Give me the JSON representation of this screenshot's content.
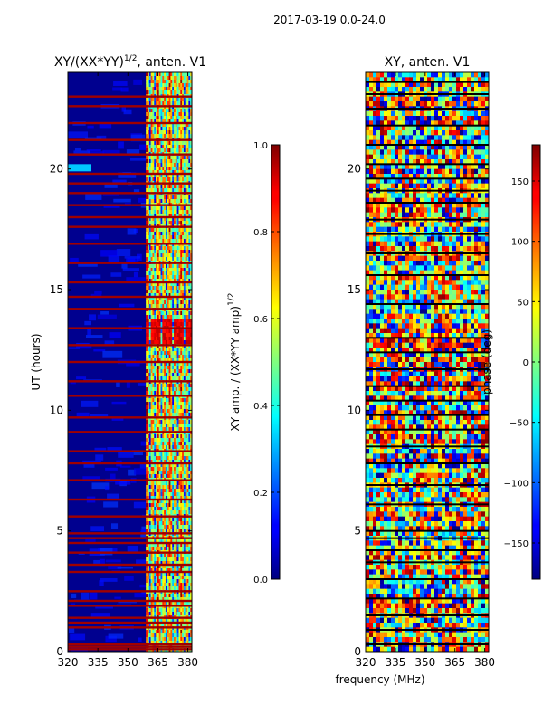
{
  "suptitle": "2017-03-19 0.0-24.0",
  "shared_xlabel": "frequency (MHz)",
  "colors": {
    "jet_dark_blue": "#00007f",
    "jet_blue": "#0000ff",
    "jet_cyan": "#00ffff",
    "jet_yellow": "#ffff00",
    "jet_red": "#ff0000",
    "jet_dark_red": "#7f0000",
    "frame": "#000000"
  },
  "chart_data": [
    {
      "type": "heatmap",
      "title": "XY/(XX*YY)",
      "title_exponent": "1/2",
      "title_suffix": ", anten. V1",
      "xlabel": "",
      "ylabel": "UT (hours)",
      "xlim": [
        320,
        382
      ],
      "ylim": [
        0,
        24
      ],
      "xticks": [
        320,
        335,
        350,
        365,
        380
      ],
      "yticks": [
        0,
        5,
        10,
        15,
        20
      ],
      "colorbar": {
        "label": "XY amp. / (XX*YY amp)",
        "label_exponent": "1/2",
        "range": [
          0.0,
          1.0
        ],
        "ticks": [
          "0.0",
          "0.2",
          "0.4",
          "0.6",
          "0.8",
          "1.0"
        ],
        "tick_values": [
          0.0,
          0.2,
          0.4,
          0.6,
          0.8,
          1.0
        ]
      },
      "active_band_mhz": [
        359,
        382
      ],
      "flagged_band_hours": [
        0.1,
        0.2,
        0.3,
        1.0,
        1.2,
        1.4,
        1.9,
        2.1,
        2.5,
        3.3,
        3.6,
        4.1,
        4.5,
        4.7,
        4.9,
        5.6,
        6.3,
        7.1,
        7.8,
        8.3,
        9.1,
        9.7,
        10.6,
        11.2,
        12.0,
        12.7,
        13.4,
        14.2,
        14.7,
        15.3,
        16.1,
        16.9,
        17.6,
        18.0,
        18.5,
        19.0,
        19.4,
        19.8,
        20.6,
        21.2,
        21.9,
        22.6,
        23.0
      ],
      "high_amp_block_hours": [
        12.8,
        13.8
      ]
    },
    {
      "type": "heatmap",
      "title": "XY, anten. V1",
      "xlabel": "frequency (MHz)",
      "ylabel": "",
      "xlim": [
        320,
        382
      ],
      "ylim": [
        0,
        24
      ],
      "xticks": [
        320,
        335,
        350,
        365,
        380
      ],
      "yticks": [
        0,
        5,
        10,
        15,
        20
      ],
      "colorbar": {
        "label": "phase (deg)",
        "range": [
          -180,
          180
        ],
        "ticks": [
          "−150",
          "−100",
          "−50",
          "0",
          "50",
          "100",
          "150"
        ],
        "tick_values": [
          -150,
          -100,
          -50,
          0,
          50,
          100,
          150
        ]
      },
      "flagged_band_hours": [
        0.3,
        0.9,
        1.5,
        2.2,
        3.0,
        3.7,
        4.2,
        4.7,
        5.0,
        6.1,
        6.9,
        7.8,
        8.5,
        9.2,
        9.8,
        10.4,
        11.0,
        11.7,
        12.4,
        13.0,
        14.4,
        15.6,
        16.5,
        17.3,
        17.9,
        18.6,
        19.1,
        19.6,
        20.2,
        21.0,
        21.8,
        22.5,
        23.1,
        23.6
      ]
    }
  ]
}
